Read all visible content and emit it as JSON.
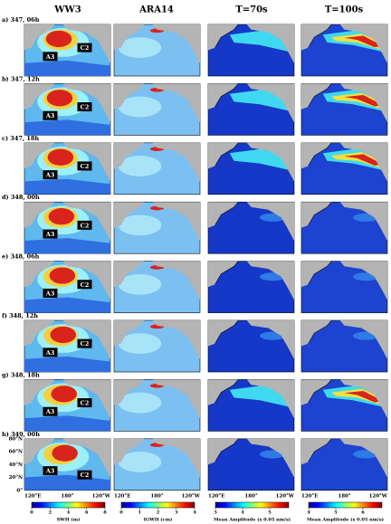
{
  "headers": [
    "WW3",
    "ARA14",
    "T=70s",
    "T=100s"
  ],
  "rows": [
    {
      "label": "a) 347, 06h"
    },
    {
      "label": "b) 347, 12h"
    },
    {
      "label": "c) 347, 18h"
    },
    {
      "label": "d) 348, 00h"
    },
    {
      "label": "e) 348, 06h"
    },
    {
      "label": "f) 348, 12h"
    },
    {
      "label": "g) 348, 18h"
    },
    {
      "label": "h) 349, 00h"
    }
  ],
  "markers": [
    "A3",
    "C2"
  ],
  "lat_labels": [
    "80°N",
    "60°N",
    "40°N",
    "20°N",
    "0°"
  ],
  "lon_labels": [
    "120°E",
    "180°",
    "120°W"
  ],
  "colorbars": [
    {
      "label": "SWH (m)",
      "lim": [
        0,
        8
      ],
      "ticks": [
        0,
        2,
        4,
        6,
        8
      ]
    },
    {
      "label": "IGWH (cm)",
      "lim": [
        0,
        4
      ],
      "ticks": [
        0,
        1,
        2,
        3,
        4
      ]
    },
    {
      "label": "Mean Amplitude (x 0.05 nm/s)",
      "lim": [
        3,
        5.7
      ],
      "ticks": [
        3,
        4,
        5
      ]
    },
    {
      "label": "Mean Amplitude (x 0.05 nm/s)",
      "lim": [
        4,
        6.7
      ],
      "ticks": [
        4,
        5,
        6
      ]
    }
  ]
}
